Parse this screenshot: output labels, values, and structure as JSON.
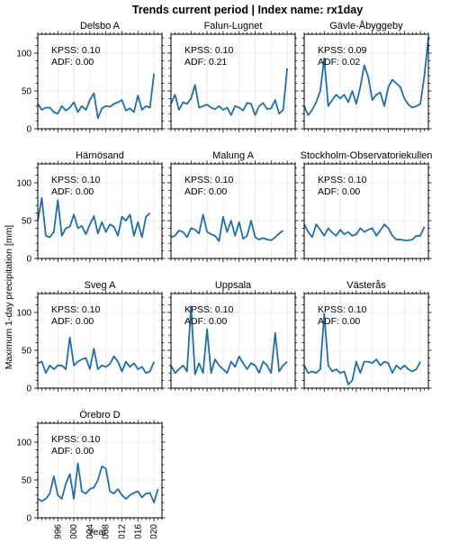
{
  "suptitle": "Trends current period | Index name: rx1day",
  "ylabel": "Maximum 1-day precipitation [mm]",
  "xlabel": "Year",
  "chart_data": {
    "type": "line",
    "layout": "small-multiples 4x3",
    "line_color": "#1f6fae",
    "grid": true,
    "x": [
      1991,
      1992,
      1993,
      1994,
      1995,
      1996,
      1997,
      1998,
      1999,
      2000,
      2001,
      2002,
      2003,
      2004,
      2005,
      2006,
      2007,
      2008,
      2009,
      2010,
      2011,
      2012,
      2013,
      2014,
      2015,
      2016,
      2017,
      2018,
      2019,
      2020,
      2021,
      2022
    ],
    "xlim": [
      1991,
      2022
    ],
    "ylim": [
      0,
      125
    ],
    "yticks": [
      0,
      50,
      100
    ],
    "xticks": [
      1996,
      2000,
      2004,
      2008,
      2012,
      2016,
      2020
    ],
    "panels": [
      {
        "name": "Delsbo A",
        "kpss": "KPSS: 0.10",
        "adf": "ADF: 0.00",
        "values": [
          33,
          25,
          28,
          28,
          22,
          20,
          30,
          24,
          28,
          35,
          22,
          30,
          25,
          38,
          47,
          14,
          27,
          30,
          29,
          33,
          35,
          38,
          24,
          27,
          22,
          44,
          25,
          30,
          28,
          73,
          null,
          null
        ]
      },
      {
        "name": "Falun-Lugnet",
        "kpss": "KPSS: 0.10",
        "adf": "ADF: 0.21",
        "values": [
          33,
          45,
          25,
          35,
          33,
          40,
          58,
          28,
          30,
          32,
          28,
          26,
          30,
          25,
          28,
          18,
          30,
          28,
          24,
          34,
          33,
          18,
          30,
          34,
          26,
          27,
          38,
          20,
          25,
          80,
          null,
          null
        ]
      },
      {
        "name": "Gävle-Åbyggeby",
        "kpss": "KPSS: 0.09",
        "adf": "ADF: 0.02",
        "values": [
          30,
          18,
          25,
          35,
          50,
          93,
          30,
          38,
          45,
          40,
          45,
          35,
          50,
          33,
          55,
          84,
          68,
          38,
          45,
          48,
          30,
          55,
          65,
          60,
          55,
          40,
          32,
          28,
          30,
          33,
          70,
          120
        ]
      },
      {
        "name": "Härnösand",
        "kpss": "KPSS: 0.10",
        "adf": "ADF: 0.00",
        "values": [
          50,
          80,
          30,
          28,
          35,
          77,
          30,
          40,
          42,
          58,
          40,
          43,
          32,
          45,
          56,
          33,
          48,
          35,
          45,
          42,
          30,
          55,
          50,
          58,
          30,
          48,
          28,
          55,
          60,
          null,
          null,
          null
        ]
      },
      {
        "name": "Malung A",
        "kpss": "KPSS: 0.10",
        "adf": "ADF: 0.00",
        "values": [
          28,
          30,
          37,
          35,
          28,
          40,
          38,
          33,
          58,
          35,
          32,
          30,
          23,
          55,
          35,
          50,
          30,
          48,
          26,
          30,
          50,
          28,
          25,
          27,
          25,
          24,
          28,
          33,
          37,
          null,
          null,
          null
        ]
      },
      {
        "name": "Stockholm-Observatoriekullen",
        "kpss": "KPSS: 0.10",
        "adf": "ADF: 0.00",
        "values": [
          45,
          35,
          28,
          45,
          38,
          30,
          40,
          34,
          30,
          38,
          32,
          35,
          30,
          32,
          40,
          35,
          38,
          40,
          30,
          37,
          45,
          40,
          30,
          25,
          25,
          24,
          24,
          25,
          30,
          30,
          42,
          null
        ]
      },
      {
        "name": "Sveg A",
        "kpss": "KPSS: 0.10",
        "adf": "ADF: 0.00",
        "values": [
          33,
          35,
          20,
          30,
          25,
          30,
          30,
          25,
          67,
          30,
          35,
          38,
          40,
          25,
          52,
          25,
          30,
          28,
          32,
          42,
          35,
          22,
          35,
          28,
          33,
          25,
          28,
          20,
          22,
          35,
          null,
          null
        ]
      },
      {
        "name": "Uppsala",
        "kpss": "KPSS: 0.10",
        "adf": "ADF: 0.00",
        "values": [
          30,
          20,
          25,
          30,
          22,
          108,
          18,
          33,
          20,
          78,
          20,
          38,
          30,
          25,
          20,
          35,
          28,
          42,
          33,
          25,
          33,
          30,
          20,
          35,
          30,
          20,
          73,
          22,
          30,
          35,
          null,
          null
        ]
      },
      {
        "name": "Västerås",
        "kpss": "KPSS: 0.10",
        "adf": "ADF: 0.00",
        "values": [
          30,
          20,
          22,
          20,
          25,
          98,
          30,
          22,
          25,
          20,
          22,
          5,
          10,
          35,
          20,
          35,
          35,
          33,
          38,
          30,
          35,
          33,
          20,
          30,
          25,
          30,
          25,
          22,
          25,
          35,
          null,
          null
        ]
      },
      {
        "name": "Örebro D",
        "kpss": "KPSS: 0.10",
        "adf": "ADF: 0.00",
        "values": [
          25,
          22,
          25,
          32,
          55,
          30,
          25,
          45,
          58,
          25,
          72,
          35,
          32,
          38,
          40,
          50,
          68,
          65,
          35,
          32,
          38,
          30,
          25,
          30,
          33,
          35,
          27,
          32,
          33,
          20,
          38,
          null
        ]
      }
    ]
  }
}
